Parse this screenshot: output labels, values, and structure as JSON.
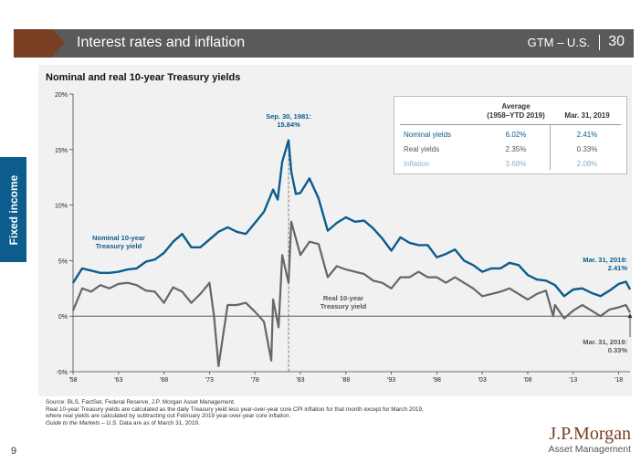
{
  "header": {
    "title": "Interest rates and inflation",
    "section": "GTM – U.S.",
    "page": "30"
  },
  "side_tab": "Fixed income",
  "chart_data": {
    "type": "line",
    "title": "Nominal and real 10-year Treasury yields",
    "x_ticks": [
      "'58",
      "'63",
      "'68",
      "'73",
      "'78",
      "'83",
      "'88",
      "'93",
      "'98",
      "'03",
      "'08",
      "'13",
      "'18"
    ],
    "y_ticks": [
      "20%",
      "15%",
      "10%",
      "5%",
      "0%",
      "-5%"
    ],
    "ylim": [
      -5,
      20
    ],
    "xlim": [
      1958,
      2019.25
    ],
    "series": [
      {
        "name": "Nominal 10-year Treasury yield",
        "color": "#0c5c8e",
        "x": [
          1958,
          1959,
          1960,
          1961,
          1962,
          1963,
          1964,
          1965,
          1966,
          1967,
          1968,
          1969,
          1970,
          1971,
          1972,
          1973,
          1974,
          1975,
          1976,
          1977,
          1978,
          1979,
          1980,
          1980.5,
          1981,
          1981.7,
          1982,
          1982.5,
          1983,
          1984,
          1985,
          1986,
          1987,
          1988,
          1989,
          1990,
          1991,
          1992,
          1993,
          1994,
          1995,
          1996,
          1997,
          1998,
          1999,
          2000,
          2001,
          2002,
          2003,
          2004,
          2005,
          2006,
          2007,
          2008,
          2009,
          2010,
          2011,
          2012,
          2013,
          2014,
          2015,
          2016,
          2017,
          2018,
          2018.8,
          2019.25
        ],
        "y": [
          3.0,
          4.3,
          4.1,
          3.9,
          3.9,
          4.0,
          4.2,
          4.3,
          4.9,
          5.1,
          5.7,
          6.7,
          7.4,
          6.2,
          6.2,
          6.9,
          7.6,
          8.0,
          7.6,
          7.4,
          8.4,
          9.4,
          11.4,
          10.5,
          13.9,
          15.84,
          13.0,
          11.0,
          11.1,
          12.4,
          10.6,
          7.7,
          8.4,
          8.9,
          8.5,
          8.6,
          7.9,
          7.0,
          5.9,
          7.1,
          6.6,
          6.4,
          6.4,
          5.3,
          5.6,
          6.0,
          5.0,
          4.6,
          4.0,
          4.3,
          4.3,
          4.8,
          4.6,
          3.7,
          3.3,
          3.2,
          2.8,
          1.8,
          2.4,
          2.5,
          2.1,
          1.8,
          2.3,
          2.9,
          3.1,
          2.41
        ]
      },
      {
        "name": "Real 10-year Treasury yield",
        "color": "#666666",
        "x": [
          1958,
          1959,
          1960,
          1961,
          1962,
          1963,
          1964,
          1965,
          1966,
          1967,
          1968,
          1969,
          1970,
          1971,
          1972,
          1973,
          1973.5,
          1974,
          1975,
          1976,
          1977,
          1978,
          1979,
          1979.8,
          1980,
          1980.6,
          1981,
          1981.7,
          1982,
          1983,
          1984,
          1985,
          1986,
          1987,
          1988,
          1989,
          1990,
          1991,
          1992,
          1993,
          1994,
          1995,
          1996,
          1997,
          1998,
          1999,
          2000,
          2001,
          2002,
          2003,
          2004,
          2005,
          2006,
          2007,
          2008,
          2009,
          2010,
          2010.8,
          2011,
          2012,
          2013,
          2014,
          2015,
          2016,
          2017,
          2018,
          2018.8,
          2019.25
        ],
        "y": [
          0.5,
          2.5,
          2.2,
          2.8,
          2.5,
          2.9,
          3.0,
          2.8,
          2.3,
          2.2,
          1.2,
          2.6,
          2.2,
          1.2,
          2.0,
          3.0,
          0.0,
          -4.5,
          1.0,
          1.0,
          1.2,
          0.4,
          -0.5,
          -4.0,
          1.5,
          -1.0,
          5.5,
          3.0,
          8.5,
          5.5,
          6.7,
          6.5,
          3.5,
          4.5,
          4.2,
          4.0,
          3.8,
          3.2,
          3.0,
          2.5,
          3.5,
          3.5,
          4.0,
          3.5,
          3.5,
          3.0,
          3.5,
          3.0,
          2.5,
          1.8,
          2.0,
          2.2,
          2.5,
          2.0,
          1.5,
          2.0,
          2.3,
          0.0,
          1.0,
          -0.2,
          0.5,
          1.0,
          0.5,
          0.0,
          0.6,
          0.8,
          1.0,
          0.33
        ]
      }
    ],
    "annotations": {
      "peak": [
        "Sep. 30, 1981:",
        "15.84%"
      ],
      "nominal_label": [
        "Nominal 10-year",
        "Treasury yield"
      ],
      "real_label": [
        "Real 10-year",
        "Treasury yield"
      ],
      "nominal_end": [
        "Mar. 31, 2019:",
        "2.41%"
      ],
      "real_end": [
        "Mar. 31, 2019:",
        "0.33%"
      ]
    }
  },
  "inset_table": {
    "col1": "Average",
    "col1_sub": "(1958–YTD 2019)",
    "col2": "Mar. 31, 2019",
    "rows": [
      {
        "label": "Nominal yields",
        "v1": "6.02%",
        "v2": "2.41%",
        "color": "#0c5c8e"
      },
      {
        "label": "Real yields",
        "v1": "2.35%",
        "v2": "0.33%",
        "color": "#555555"
      },
      {
        "label": "Inflation",
        "v1": "3.68%",
        "v2": "2.08%",
        "color": "#7fb3d3"
      }
    ]
  },
  "footnote": {
    "line1": "Source: BLS, FactSet, Federal Reserve, J.P. Morgan Asset Management.",
    "line2": "Real 10-year Treasury yields are calculated as the daily Treasury yield less year-over-year core CPI inflation for that month except for March 2019,",
    "line3": "where real yields are calculated by subtracting out February 2019 year-over-year core inflation.",
    "guide": "Guide to the Markets – U.S.",
    "guide_rest": " Data are as of March 31, 2019."
  },
  "logo": {
    "main": "J.P.Morgan",
    "sub": "Asset Management"
  },
  "page_number": "9"
}
